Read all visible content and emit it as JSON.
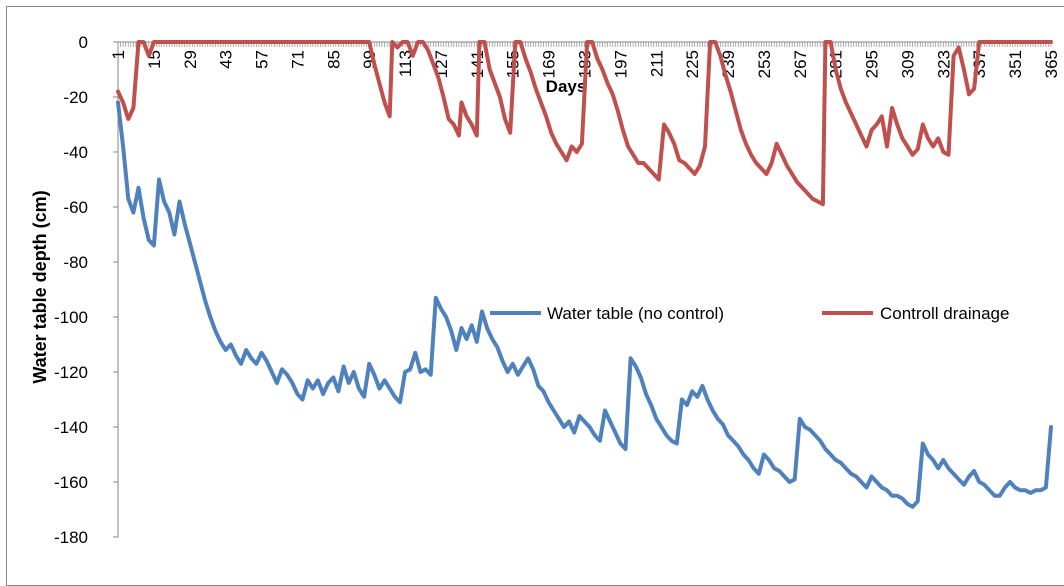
{
  "chart_data": {
    "type": "line",
    "title": "",
    "xlabel": "Days",
    "ylabel": "Water table depth (cm)",
    "ylim": [
      -180,
      0
    ],
    "yticks": [
      "0",
      "-20",
      "-40",
      "-60",
      "-80",
      "-100",
      "-120",
      "-140",
      "-160",
      "-180"
    ],
    "xlim": [
      1,
      365
    ],
    "xticks": [
      "1",
      "15",
      "29",
      "43",
      "57",
      "71",
      "85",
      "99",
      "113",
      "127",
      "141",
      "155",
      "169",
      "183",
      "197",
      "211",
      "225",
      "239",
      "253",
      "267",
      "281",
      "295",
      "309",
      "323",
      "337",
      "351",
      "365"
    ],
    "grid": false,
    "legend_position": "right",
    "series": [
      {
        "name": "Water table (no control)",
        "color": "#4F81BD",
        "points": [
          [
            1,
            -22
          ],
          [
            3,
            -38
          ],
          [
            5,
            -57
          ],
          [
            7,
            -62
          ],
          [
            9,
            -53
          ],
          [
            11,
            -64
          ],
          [
            13,
            -72
          ],
          [
            15,
            -74
          ],
          [
            17,
            -50
          ],
          [
            19,
            -58
          ],
          [
            21,
            -62
          ],
          [
            23,
            -70
          ],
          [
            25,
            -58
          ],
          [
            27,
            -66
          ],
          [
            29,
            -73
          ],
          [
            31,
            -80
          ],
          [
            33,
            -87
          ],
          [
            35,
            -94
          ],
          [
            37,
            -100
          ],
          [
            39,
            -105
          ],
          [
            41,
            -109
          ],
          [
            43,
            -112
          ],
          [
            45,
            -110
          ],
          [
            47,
            -114
          ],
          [
            49,
            -117
          ],
          [
            51,
            -112
          ],
          [
            53,
            -115
          ],
          [
            55,
            -117
          ],
          [
            57,
            -113
          ],
          [
            59,
            -116
          ],
          [
            61,
            -120
          ],
          [
            63,
            -124
          ],
          [
            65,
            -119
          ],
          [
            67,
            -121
          ],
          [
            69,
            -124
          ],
          [
            71,
            -128
          ],
          [
            73,
            -130
          ],
          [
            75,
            -123
          ],
          [
            77,
            -126
          ],
          [
            79,
            -123
          ],
          [
            81,
            -128
          ],
          [
            83,
            -124
          ],
          [
            85,
            -122
          ],
          [
            87,
            -127
          ],
          [
            89,
            -118
          ],
          [
            91,
            -124
          ],
          [
            93,
            -120
          ],
          [
            95,
            -126
          ],
          [
            97,
            -129
          ],
          [
            99,
            -117
          ],
          [
            101,
            -121
          ],
          [
            103,
            -126
          ],
          [
            105,
            -123
          ],
          [
            107,
            -126
          ],
          [
            109,
            -129
          ],
          [
            111,
            -131
          ],
          [
            113,
            -120
          ],
          [
            115,
            -119
          ],
          [
            117,
            -113
          ],
          [
            119,
            -120
          ],
          [
            121,
            -119
          ],
          [
            123,
            -121
          ],
          [
            125,
            -93
          ],
          [
            127,
            -97
          ],
          [
            129,
            -100
          ],
          [
            131,
            -105
          ],
          [
            133,
            -112
          ],
          [
            135,
            -104
          ],
          [
            137,
            -108
          ],
          [
            139,
            -103
          ],
          [
            141,
            -109
          ],
          [
            143,
            -98
          ],
          [
            145,
            -104
          ],
          [
            147,
            -108
          ],
          [
            149,
            -111
          ],
          [
            151,
            -116
          ],
          [
            153,
            -120
          ],
          [
            155,
            -117
          ],
          [
            157,
            -121
          ],
          [
            159,
            -118
          ],
          [
            161,
            -115
          ],
          [
            163,
            -119
          ],
          [
            165,
            -125
          ],
          [
            167,
            -127
          ],
          [
            169,
            -131
          ],
          [
            171,
            -134
          ],
          [
            173,
            -137
          ],
          [
            175,
            -140
          ],
          [
            177,
            -138
          ],
          [
            179,
            -142
          ],
          [
            181,
            -136
          ],
          [
            183,
            -138
          ],
          [
            185,
            -140
          ],
          [
            187,
            -143
          ],
          [
            189,
            -145
          ],
          [
            191,
            -134
          ],
          [
            193,
            -138
          ],
          [
            195,
            -142
          ],
          [
            197,
            -146
          ],
          [
            199,
            -148
          ],
          [
            201,
            -115
          ],
          [
            203,
            -118
          ],
          [
            205,
            -122
          ],
          [
            207,
            -128
          ],
          [
            209,
            -132
          ],
          [
            211,
            -137
          ],
          [
            213,
            -140
          ],
          [
            215,
            -143
          ],
          [
            217,
            -145
          ],
          [
            219,
            -146
          ],
          [
            221,
            -130
          ],
          [
            223,
            -132
          ],
          [
            225,
            -127
          ],
          [
            227,
            -129
          ],
          [
            229,
            -125
          ],
          [
            231,
            -130
          ],
          [
            233,
            -134
          ],
          [
            235,
            -137
          ],
          [
            237,
            -139
          ],
          [
            239,
            -143
          ],
          [
            241,
            -145
          ],
          [
            243,
            -147
          ],
          [
            245,
            -150
          ],
          [
            247,
            -152
          ],
          [
            249,
            -155
          ],
          [
            251,
            -157
          ],
          [
            253,
            -150
          ],
          [
            255,
            -152
          ],
          [
            257,
            -155
          ],
          [
            259,
            -156
          ],
          [
            261,
            -158
          ],
          [
            263,
            -160
          ],
          [
            265,
            -159
          ],
          [
            267,
            -137
          ],
          [
            269,
            -140
          ],
          [
            271,
            -141
          ],
          [
            273,
            -143
          ],
          [
            275,
            -145
          ],
          [
            277,
            -148
          ],
          [
            279,
            -150
          ],
          [
            281,
            -152
          ],
          [
            283,
            -153
          ],
          [
            285,
            -155
          ],
          [
            287,
            -157
          ],
          [
            289,
            -158
          ],
          [
            291,
            -160
          ],
          [
            293,
            -162
          ],
          [
            295,
            -158
          ],
          [
            297,
            -160
          ],
          [
            299,
            -162
          ],
          [
            301,
            -163
          ],
          [
            303,
            -165
          ],
          [
            305,
            -165
          ],
          [
            307,
            -166
          ],
          [
            309,
            -168
          ],
          [
            311,
            -169
          ],
          [
            313,
            -167
          ],
          [
            315,
            -146
          ],
          [
            317,
            -150
          ],
          [
            319,
            -152
          ],
          [
            321,
            -155
          ],
          [
            323,
            -152
          ],
          [
            325,
            -155
          ],
          [
            327,
            -157
          ],
          [
            329,
            -159
          ],
          [
            331,
            -161
          ],
          [
            333,
            -158
          ],
          [
            335,
            -156
          ],
          [
            337,
            -160
          ],
          [
            339,
            -161
          ],
          [
            341,
            -163
          ],
          [
            343,
            -165
          ],
          [
            345,
            -165
          ],
          [
            347,
            -162
          ],
          [
            349,
            -160
          ],
          [
            351,
            -162
          ],
          [
            353,
            -163
          ],
          [
            355,
            -163
          ],
          [
            357,
            -164
          ],
          [
            359,
            -163
          ],
          [
            361,
            -163
          ],
          [
            363,
            -162
          ],
          [
            365,
            -140
          ]
        ]
      },
      {
        "name": "Controll drainage",
        "color": "#C0504D",
        "points": [
          [
            1,
            -18
          ],
          [
            3,
            -22
          ],
          [
            5,
            -28
          ],
          [
            7,
            -24
          ],
          [
            9,
            0
          ],
          [
            11,
            0
          ],
          [
            13,
            -5
          ],
          [
            15,
            0
          ],
          [
            17,
            0
          ],
          [
            99,
            0
          ],
          [
            101,
            -8
          ],
          [
            103,
            -15
          ],
          [
            105,
            -22
          ],
          [
            107,
            -27
          ],
          [
            108,
            0
          ],
          [
            110,
            -2
          ],
          [
            112,
            0
          ],
          [
            114,
            0
          ],
          [
            116,
            -5
          ],
          [
            118,
            0
          ],
          [
            120,
            0
          ],
          [
            122,
            -3
          ],
          [
            124,
            -8
          ],
          [
            126,
            -13
          ],
          [
            128,
            -20
          ],
          [
            130,
            -28
          ],
          [
            132,
            -30
          ],
          [
            134,
            -34
          ],
          [
            135,
            -22
          ],
          [
            137,
            -27
          ],
          [
            139,
            -30
          ],
          [
            141,
            -34
          ],
          [
            142,
            0
          ],
          [
            144,
            0
          ],
          [
            146,
            -10
          ],
          [
            148,
            -15
          ],
          [
            150,
            -20
          ],
          [
            152,
            -28
          ],
          [
            154,
            -33
          ],
          [
            156,
            0
          ],
          [
            158,
            0
          ],
          [
            160,
            -6
          ],
          [
            162,
            -11
          ],
          [
            164,
            -17
          ],
          [
            166,
            -22
          ],
          [
            168,
            -27
          ],
          [
            170,
            -33
          ],
          [
            172,
            -37
          ],
          [
            174,
            -40
          ],
          [
            176,
            -43
          ],
          [
            178,
            -38
          ],
          [
            180,
            -40
          ],
          [
            182,
            -37
          ],
          [
            184,
            0
          ],
          [
            186,
            0
          ],
          [
            188,
            -6
          ],
          [
            190,
            -10
          ],
          [
            192,
            -15
          ],
          [
            194,
            -19
          ],
          [
            196,
            -25
          ],
          [
            198,
            -32
          ],
          [
            200,
            -38
          ],
          [
            202,
            -41
          ],
          [
            204,
            -44
          ],
          [
            206,
            -44
          ],
          [
            208,
            -46
          ],
          [
            210,
            -48
          ],
          [
            212,
            -50
          ],
          [
            214,
            -30
          ],
          [
            216,
            -33
          ],
          [
            218,
            -37
          ],
          [
            220,
            -43
          ],
          [
            222,
            -44
          ],
          [
            224,
            -46
          ],
          [
            226,
            -48
          ],
          [
            228,
            -45
          ],
          [
            230,
            -38
          ],
          [
            232,
            0
          ],
          [
            234,
            0
          ],
          [
            236,
            -5
          ],
          [
            238,
            -12
          ],
          [
            240,
            -18
          ],
          [
            242,
            -25
          ],
          [
            244,
            -32
          ],
          [
            246,
            -37
          ],
          [
            248,
            -41
          ],
          [
            250,
            -44
          ],
          [
            252,
            -46
          ],
          [
            254,
            -48
          ],
          [
            256,
            -44
          ],
          [
            258,
            -37
          ],
          [
            260,
            -41
          ],
          [
            262,
            -45
          ],
          [
            264,
            -48
          ],
          [
            266,
            -51
          ],
          [
            268,
            -53
          ],
          [
            270,
            -55
          ],
          [
            272,
            -57
          ],
          [
            274,
            -58
          ],
          [
            276,
            -59
          ],
          [
            277,
            0
          ],
          [
            279,
            0
          ],
          [
            281,
            -10
          ],
          [
            283,
            -17
          ],
          [
            285,
            -22
          ],
          [
            287,
            -26
          ],
          [
            289,
            -30
          ],
          [
            291,
            -34
          ],
          [
            293,
            -38
          ],
          [
            295,
            -32
          ],
          [
            297,
            -30
          ],
          [
            299,
            -27
          ],
          [
            301,
            -38
          ],
          [
            303,
            -24
          ],
          [
            305,
            -30
          ],
          [
            307,
            -35
          ],
          [
            309,
            -38
          ],
          [
            311,
            -41
          ],
          [
            313,
            -39
          ],
          [
            315,
            -30
          ],
          [
            317,
            -35
          ],
          [
            319,
            -38
          ],
          [
            321,
            -35
          ],
          [
            323,
            -40
          ],
          [
            325,
            -41
          ],
          [
            327,
            -5
          ],
          [
            329,
            -2
          ],
          [
            331,
            -10
          ],
          [
            333,
            -19
          ],
          [
            335,
            -17
          ],
          [
            337,
            0
          ],
          [
            365,
            0
          ]
        ]
      }
    ]
  }
}
